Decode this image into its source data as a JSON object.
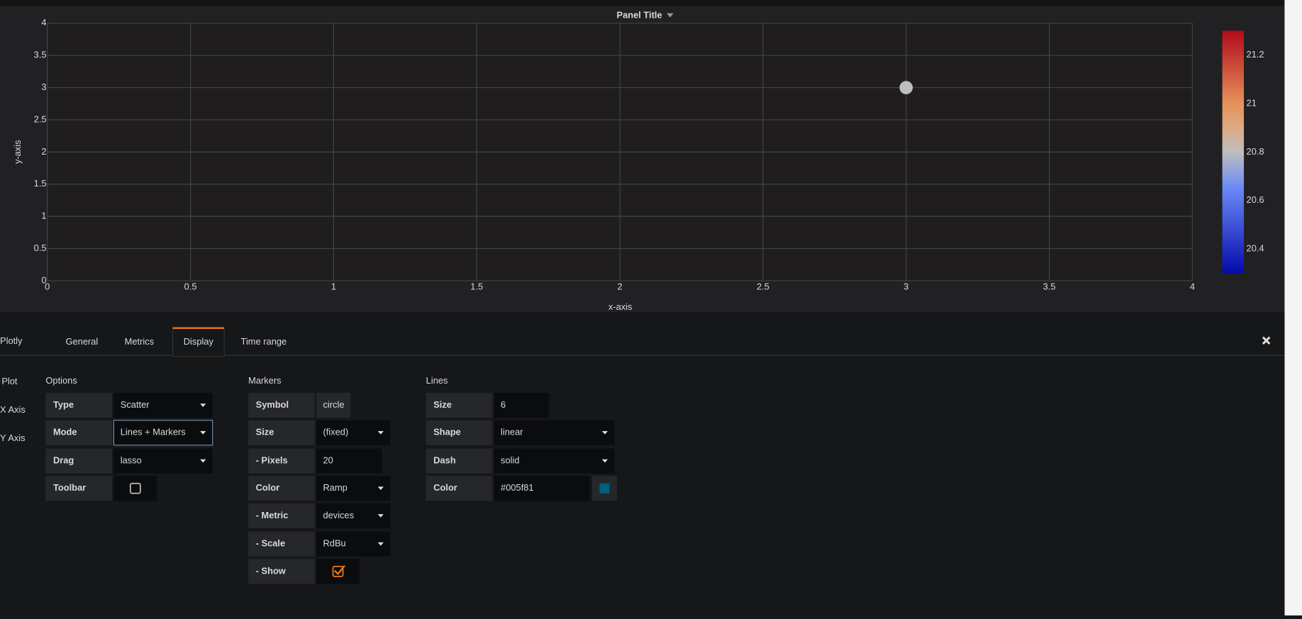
{
  "chart_data": {
    "type": "scatter",
    "title": "Panel Title",
    "x_label": "x-axis",
    "y_label": "y-axis",
    "x": [
      3
    ],
    "values": [
      3
    ],
    "color_values": [
      20.8
    ],
    "colorscale": "RdBu",
    "xlim": [
      0,
      4
    ],
    "xticks": [
      0,
      0.5,
      1,
      1.5,
      2,
      2.5,
      3,
      3.5,
      4
    ],
    "ylim": [
      0,
      4
    ],
    "yticks": [
      0,
      0.5,
      1,
      1.5,
      2,
      2.5,
      3,
      3.5,
      4
    ],
    "grid": true,
    "colorbar": {
      "lim": [
        20.3,
        21.3
      ],
      "ticks": [
        20.4,
        20.6,
        20.8,
        21,
        21.2
      ]
    }
  },
  "editor": {
    "title": "Plotly",
    "tabs": [
      "General",
      "Metrics",
      "Display",
      "Time range"
    ],
    "active_tab": "Display",
    "side_nav": [
      "Plot",
      "X Axis",
      "Y Axis"
    ],
    "sections": [
      {
        "title": "Options",
        "rows": [
          {
            "label": "Type",
            "value": "Scatter",
            "control": "select"
          },
          {
            "label": "Mode",
            "value": "Lines + Markers",
            "control": "select"
          },
          {
            "label": "Drag",
            "value": "lasso",
            "control": "select"
          },
          {
            "label": "Toolbar",
            "value": false,
            "control": "checkbox"
          }
        ]
      },
      {
        "title": "Markers",
        "rows": [
          {
            "label": "Symbol",
            "value": "circle",
            "control": "text"
          },
          {
            "label": "Size",
            "value": "(fixed)",
            "control": "select"
          },
          {
            "label": "- Pixels",
            "value": "20",
            "control": "input"
          },
          {
            "label": "Color",
            "value": "Ramp",
            "control": "select"
          },
          {
            "label": "- Metric",
            "value": "devices",
            "control": "select"
          },
          {
            "label": "- Scale",
            "value": "RdBu",
            "control": "select"
          },
          {
            "label": "- Show",
            "value": true,
            "control": "checkbox"
          }
        ]
      },
      {
        "title": "Lines",
        "rows": [
          {
            "label": "Size",
            "value": "6",
            "control": "input"
          },
          {
            "label": "Shape",
            "value": "linear",
            "control": "select"
          },
          {
            "label": "Dash",
            "value": "solid",
            "control": "select"
          },
          {
            "label": "Color",
            "value": "#005f81",
            "control": "color"
          }
        ]
      }
    ]
  }
}
